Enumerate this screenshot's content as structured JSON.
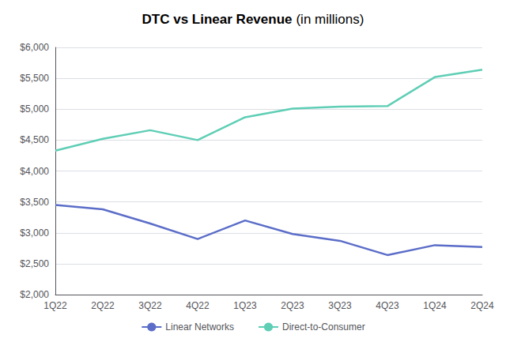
{
  "chart_data": {
    "type": "line",
    "title": "DTC vs Linear Revenue",
    "subtitle": "(in millions)",
    "categories": [
      "1Q22",
      "2Q22",
      "3Q22",
      "4Q22",
      "1Q23",
      "2Q23",
      "3Q23",
      "4Q23",
      "1Q24",
      "2Q24"
    ],
    "series": [
      {
        "name": "Linear Networks",
        "color": "#5B6DC8",
        "values": [
          3450,
          3380,
          3150,
          2900,
          3200,
          2980,
          2870,
          2640,
          2800,
          2770
        ]
      },
      {
        "name": "Direct-to-Consumer",
        "color": "#5ECEB5",
        "values": [
          4330,
          4520,
          4660,
          4500,
          4870,
          5010,
          5040,
          5050,
          5520,
          5640
        ]
      }
    ],
    "ylim": [
      2000,
      6000
    ],
    "yticks": [
      {
        "value": 2000,
        "label": "$2,000"
      },
      {
        "value": 2500,
        "label": "$2,500"
      },
      {
        "value": 3000,
        "label": "$3,000"
      },
      {
        "value": 3500,
        "label": "$3,500"
      },
      {
        "value": 4000,
        "label": "$4,000"
      },
      {
        "value": 4500,
        "label": "$4,500"
      },
      {
        "value": 5000,
        "label": "$5,000"
      },
      {
        "value": 5500,
        "label": "$5,500"
      },
      {
        "value": 6000,
        "label": "$6,000"
      }
    ],
    "grid": true,
    "legend": "bottom"
  }
}
